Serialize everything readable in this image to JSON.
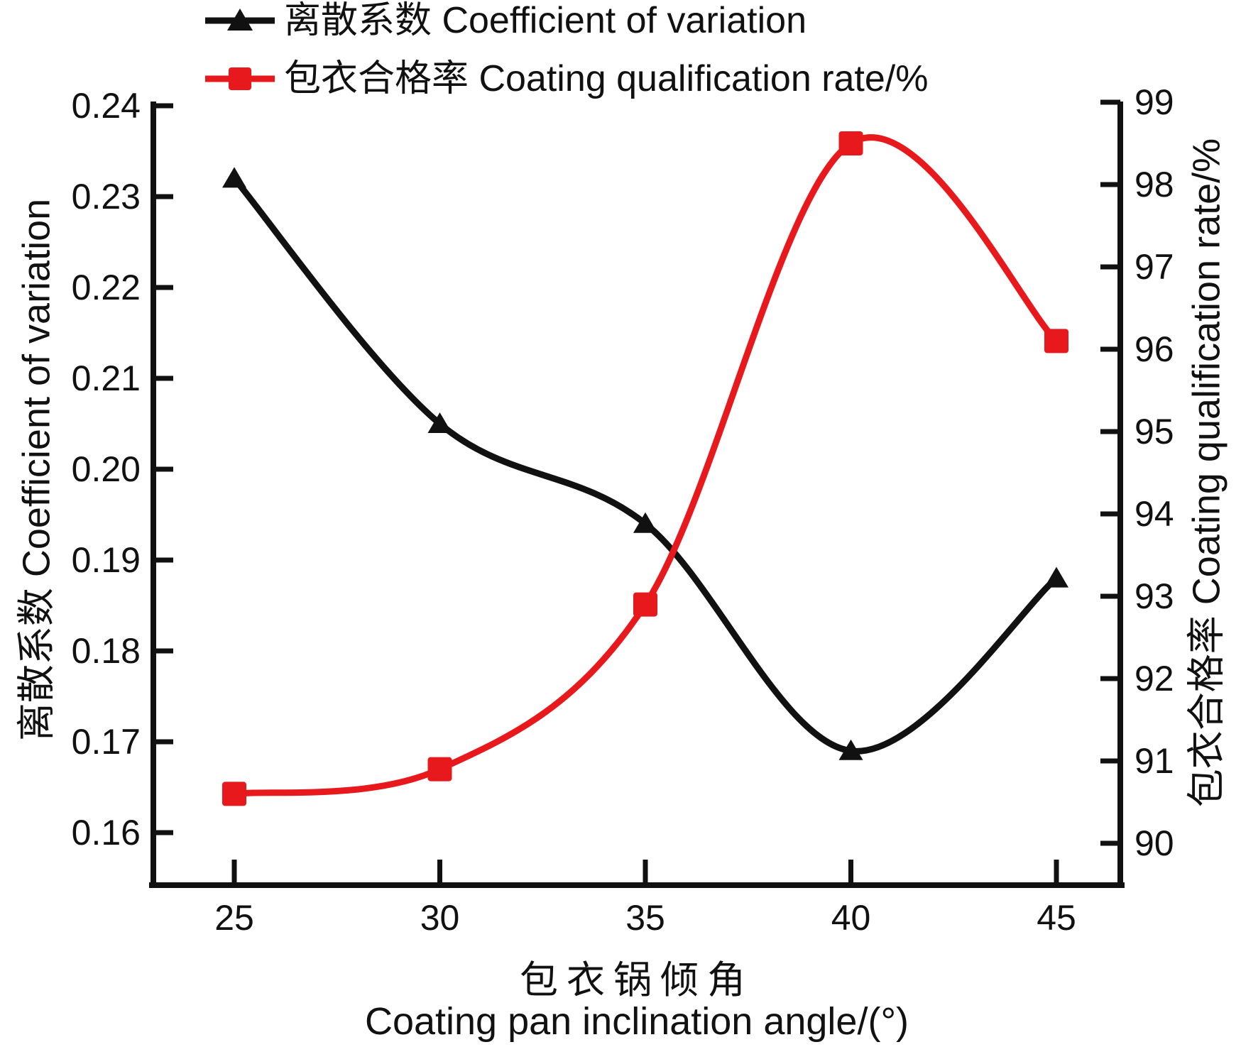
{
  "chart_data": {
    "type": "line",
    "x": [
      25,
      30,
      35,
      40,
      45
    ],
    "x_axis": {
      "min": 25,
      "max": 45,
      "tick_labels": [
        "25",
        "30",
        "35",
        "40",
        "45"
      ]
    },
    "left_axis": {
      "min": 0.16,
      "max": 0.24,
      "tick_labels": [
        "0.24",
        "0.23",
        "0.22",
        "0.21",
        "0.20",
        "0.19",
        "0.18",
        "0.17",
        "0.16"
      ]
    },
    "right_axis": {
      "min": 90,
      "max": 99,
      "tick_labels": [
        "99",
        "98",
        "97",
        "96",
        "95",
        "94",
        "93",
        "92",
        "91",
        "90"
      ]
    },
    "series": [
      {
        "name": "离散系数 Coefficient of variation",
        "axis": "left",
        "marker": "triangle",
        "color": "#111111",
        "values": [
          0.232,
          0.205,
          0.194,
          0.169,
          0.188
        ]
      },
      {
        "name": "包衣合格率 Coating qualification rate/%",
        "axis": "right",
        "marker": "square",
        "color": "#e8191d",
        "values": [
          90.6,
          90.9,
          92.9,
          98.5,
          96.1
        ]
      }
    ],
    "xlabel_zh": "包衣锅倾角",
    "xlabel_en": "Coating pan inclination angle/(°)",
    "ylabel_left": "离散系数 Coefficient of variation",
    "ylabel_right": "包衣合格率 Coating qualification rate/%",
    "grid": false,
    "smooth": true,
    "legend_position": "top-left"
  }
}
